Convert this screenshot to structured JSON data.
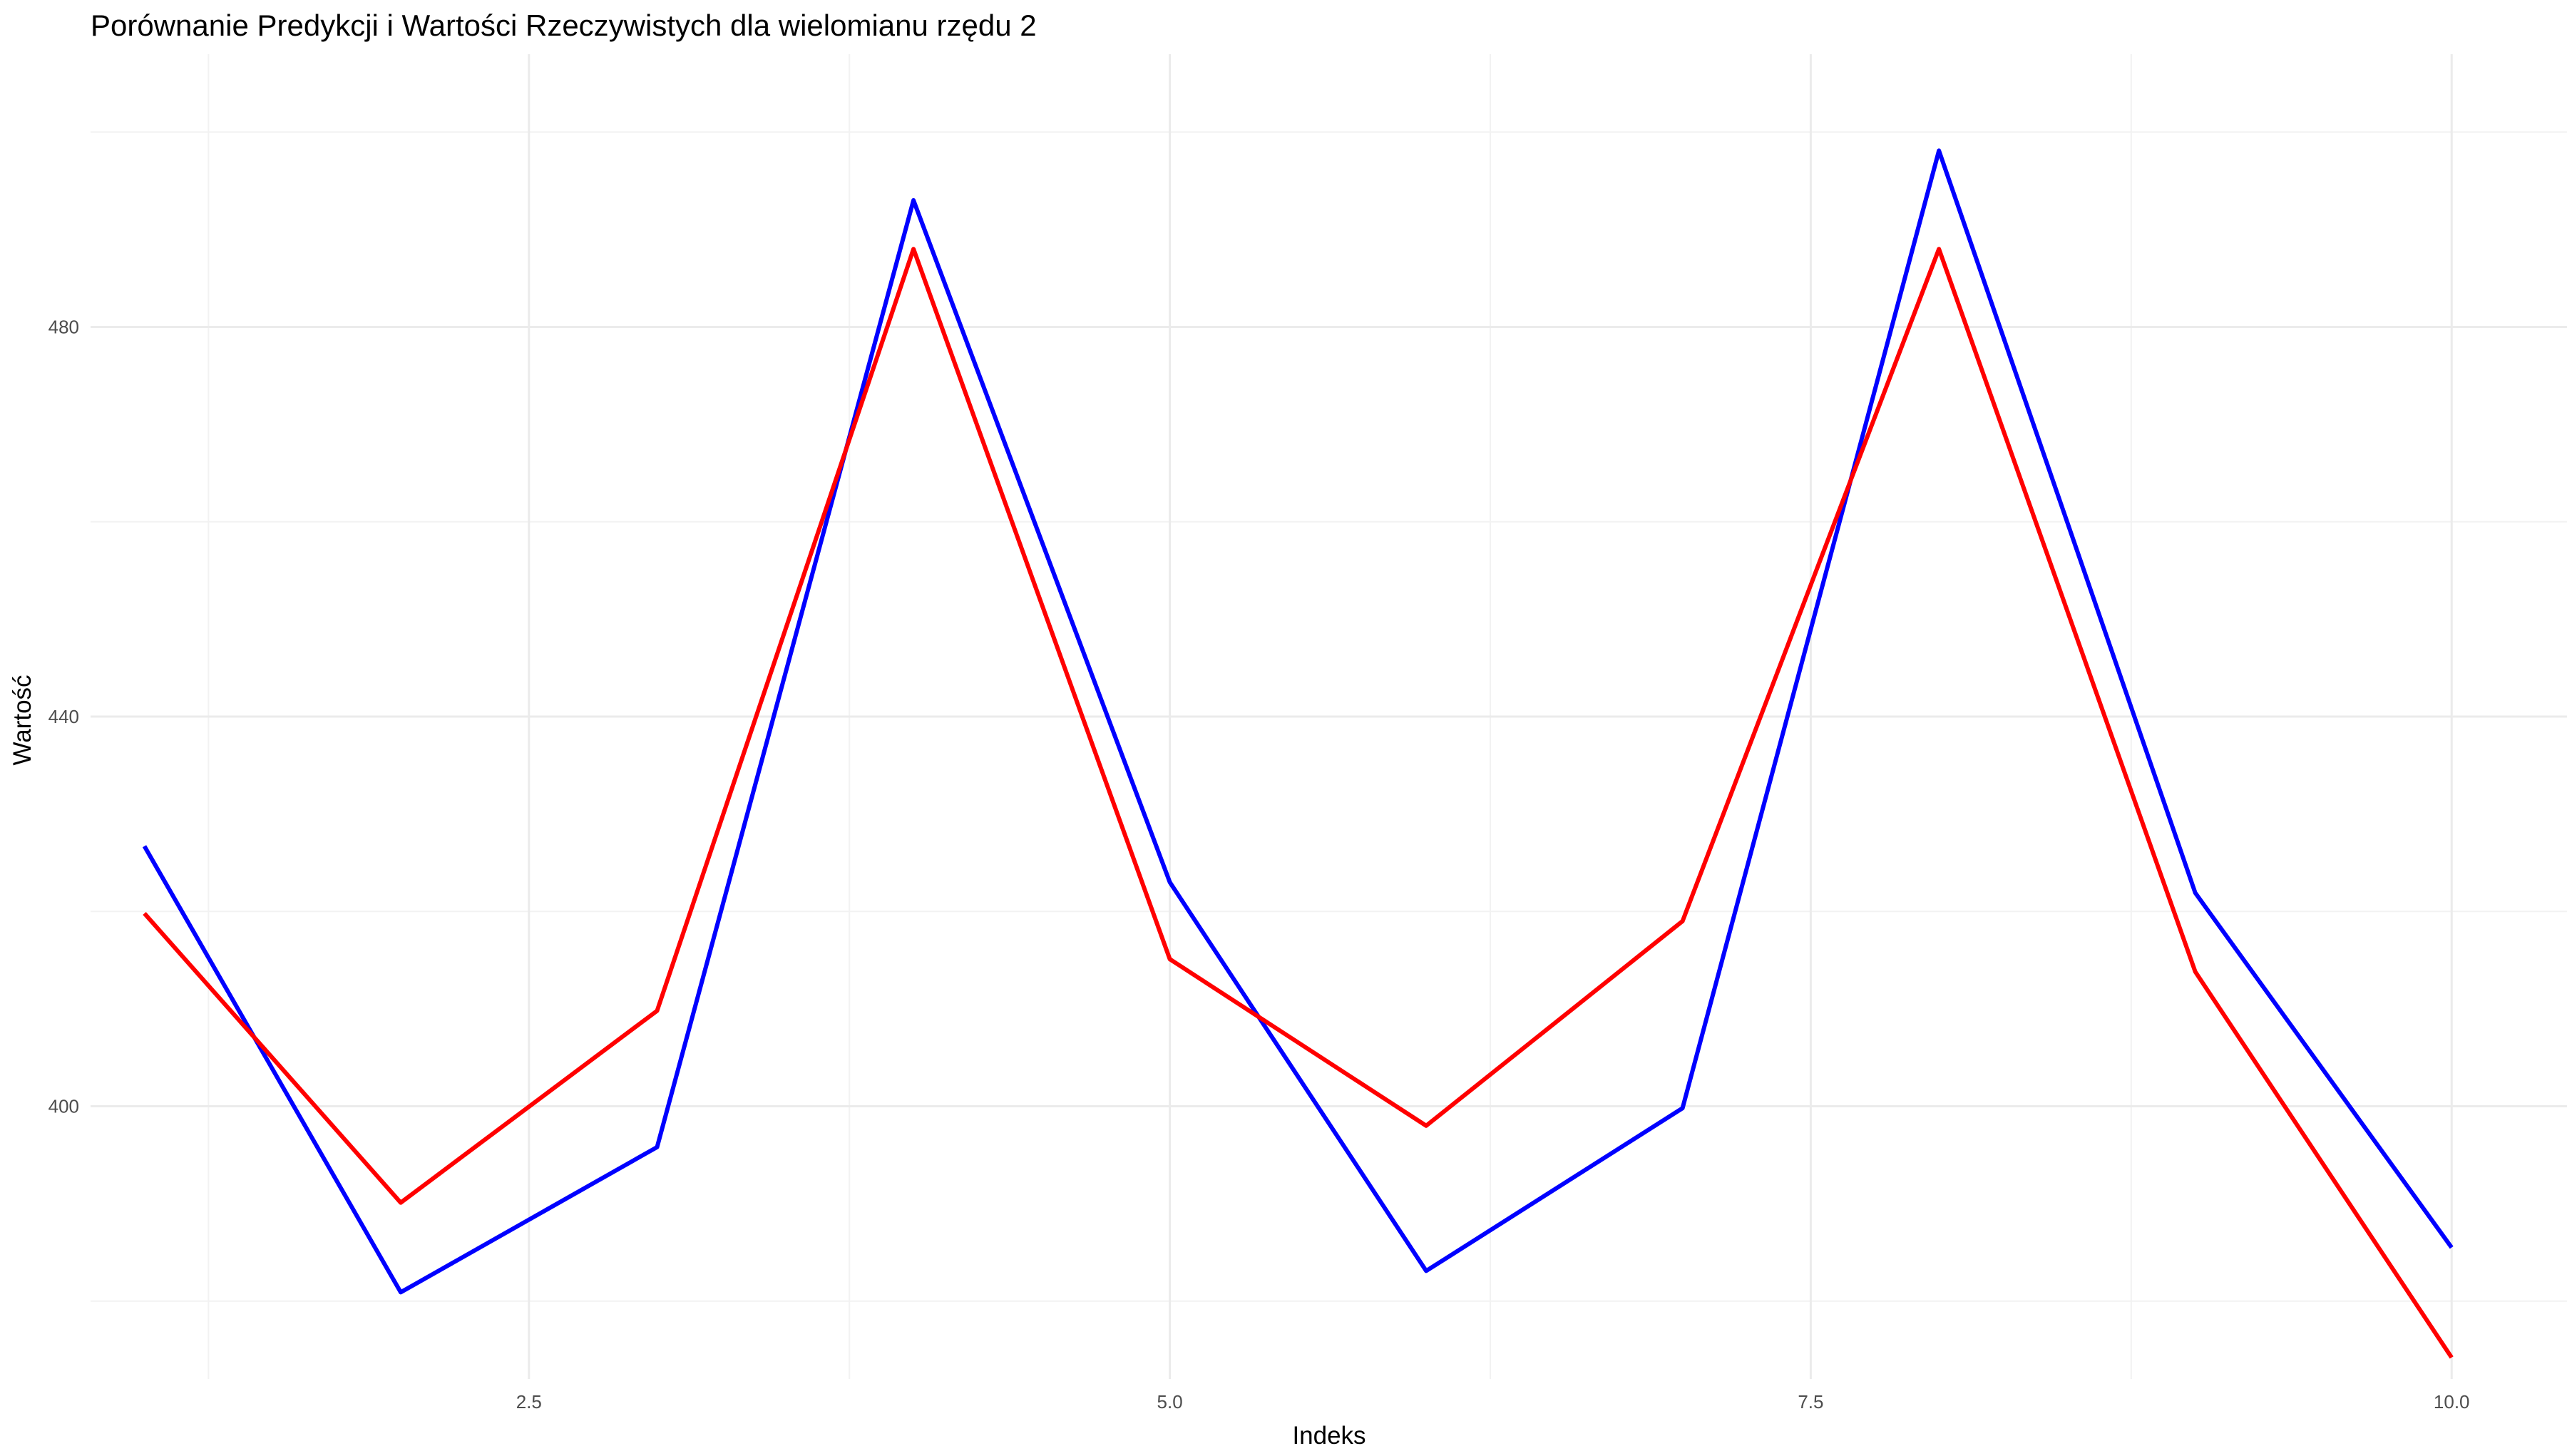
{
  "chart_data": {
    "type": "line",
    "title": "Porównanie Predykcji i Wartości Rzeczywistych dla wielomianu rzędu 2",
    "xlabel": "Indeks",
    "ylabel": "Wartość",
    "xlim": [
      0.79,
      10.45
    ],
    "ylim": [
      372,
      508
    ],
    "x_ticks": [
      2.5,
      5.0,
      7.5,
      10.0
    ],
    "x_tick_labels": [
      "2.5",
      "5.0",
      "7.5",
      "10.0"
    ],
    "x_minor_ticks": [
      1.25,
      3.75,
      6.25,
      8.75
    ],
    "y_ticks": [
      400,
      440,
      480
    ],
    "y_tick_labels": [
      "400",
      "440",
      "480"
    ],
    "y_minor_ticks": [
      380,
      420,
      460,
      500
    ],
    "grid": true,
    "legend": "none",
    "x": [
      1,
      2,
      3,
      4,
      5,
      6,
      7,
      8,
      9,
      10
    ],
    "series": [
      {
        "color": "#0000ff",
        "values": [
          426.7,
          380.9,
          395.8,
          493.0,
          423.0,
          383.1,
          399.8,
          498.1,
          421.9,
          385.5
        ]
      },
      {
        "color": "#ff0000",
        "values": [
          419.8,
          390.1,
          409.8,
          488.0,
          415.1,
          398.0,
          419.0,
          488.0,
          413.8,
          374.2
        ]
      }
    ]
  }
}
